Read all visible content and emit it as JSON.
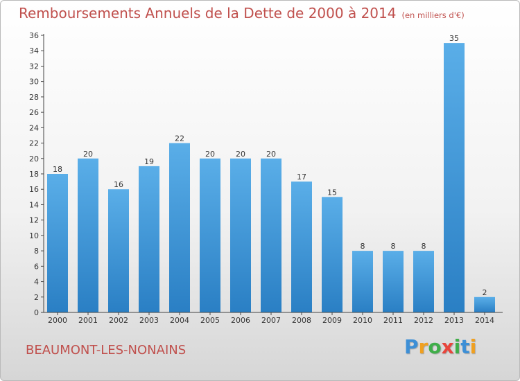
{
  "title": "Remboursements Annuels de la Dette de 2000 à 2014",
  "unit": "(en milliers d'€)",
  "commune": "BEAUMONT-LES-NONAINS",
  "logo": {
    "letters": [
      "P",
      "r",
      "o",
      "x",
      "i",
      "t",
      "i"
    ],
    "colors": [
      "#3d8fd6",
      "#f0a020",
      "#3fae49",
      "#e8453c",
      "#3fae49",
      "#3d8fd6",
      "#f0a020"
    ]
  },
  "colors": {
    "accent": "#c0504d",
    "bar_light": "#5aaee8",
    "bar_dark": "#2a7fc4"
  },
  "chart_data": {
    "type": "bar",
    "title": "Remboursements Annuels de la Dette de 2000 à 2014",
    "xlabel": "",
    "ylabel": "",
    "categories": [
      "2000",
      "2001",
      "2002",
      "2003",
      "2004",
      "2005",
      "2006",
      "2007",
      "2008",
      "2009",
      "2010",
      "2011",
      "2012",
      "2013",
      "2014"
    ],
    "values": [
      18,
      20,
      16,
      19,
      22,
      20,
      20,
      20,
      17,
      15,
      8,
      8,
      8,
      35,
      2
    ],
    "ylim": [
      0,
      36
    ],
    "yticks": [
      0,
      2,
      4,
      6,
      8,
      10,
      12,
      14,
      16,
      18,
      20,
      22,
      24,
      26,
      28,
      30,
      32,
      34,
      36
    ],
    "grid": false
  }
}
